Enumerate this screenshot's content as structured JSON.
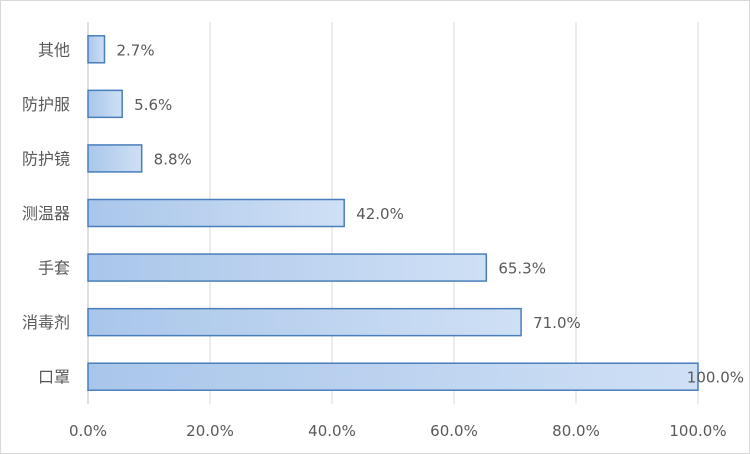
{
  "chart_data": {
    "type": "bar",
    "orientation": "horizontal",
    "categories": [
      "其他",
      "防护服",
      "防护镜",
      "测温器",
      "手套",
      "消毒剂",
      "口罩"
    ],
    "values": [
      2.7,
      5.6,
      8.8,
      42.0,
      65.3,
      71.0,
      100.0
    ],
    "data_labels": [
      "2.7%",
      "5.6%",
      "8.8%",
      "42.0%",
      "65.3%",
      "71.0%",
      "100.0%"
    ],
    "xlim": [
      0,
      100
    ],
    "x_ticks": [
      0,
      20,
      40,
      60,
      80,
      100
    ],
    "x_tick_labels": [
      "0.0%",
      "20.0%",
      "40.0%",
      "60.0%",
      "80.0%",
      "100.0%"
    ],
    "title": "",
    "xlabel": "",
    "ylabel": "",
    "grid": "vertical",
    "legend": "none",
    "colors": {
      "bar_fill_left": "#a9c6ea",
      "bar_fill_right": "#cfe0f5",
      "bar_stroke": "#4a7ebb",
      "grid": "#d9d9d9",
      "axis": "#bfbfbf",
      "text": "#595959"
    }
  }
}
